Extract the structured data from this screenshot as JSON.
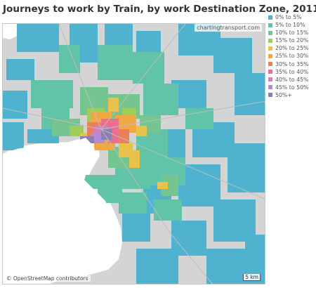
{
  "title": "Journeys to work by Train, by work Destination Zone, 2011",
  "map": {
    "credit_top": "chartingtransport.com",
    "credit_bottom": "© OpenStreetMap contributors",
    "scale_label": "5 km"
  },
  "legend": {
    "items": [
      {
        "label": "0% to 5%",
        "color": "#4fb3cf"
      },
      {
        "label": "5% to 10%",
        "color": "#61c3a8"
      },
      {
        "label": "10% to 15%",
        "color": "#74c58f"
      },
      {
        "label": "15% to 20%",
        "color": "#9fcd5a"
      },
      {
        "label": "20% to 25%",
        "color": "#e8c24a"
      },
      {
        "label": "25% to 30%",
        "color": "#f0a845"
      },
      {
        "label": "30% to 35%",
        "color": "#ec7f5a"
      },
      {
        "label": "35% to 40%",
        "color": "#e8708e"
      },
      {
        "label": "40% to 45%",
        "color": "#d27fc1"
      },
      {
        "label": "45% to 50%",
        "color": "#b28bd0"
      },
      {
        "label": "50%+",
        "color": "#8d7db0"
      }
    ]
  }
}
